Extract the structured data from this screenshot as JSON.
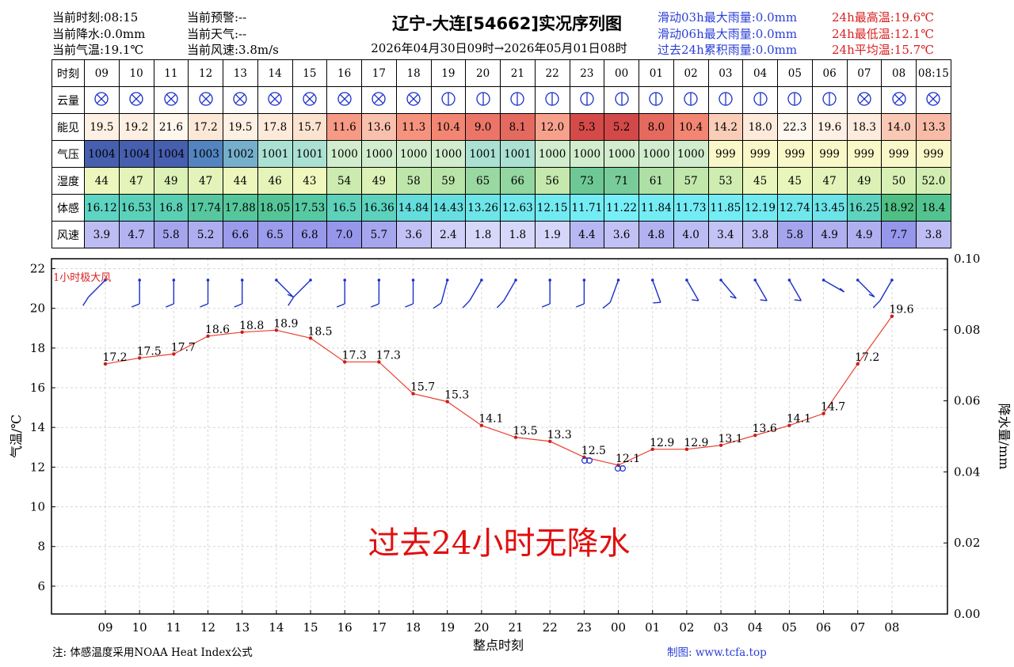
{
  "header": {
    "left": [
      "当前时刻:08:15",
      "当前降水:0.0mm",
      "当前气温:19.1℃"
    ],
    "mid": [
      "当前预警:--",
      "当前天气:--",
      "当前风速:3.8m/s"
    ],
    "title": "辽宁-大连[54662]实况序列图",
    "subtitle": "2026年04月30日09时→2026年05月01日08时",
    "rain": [
      "滑动03h最大雨量:0.0mm",
      "滑动06h最大雨量:0.0mm",
      "过去24h累积雨量:0.0mm"
    ],
    "temp": [
      "24h最高温:19.6℃",
      "24h最低温:12.1℃",
      "24h平均温:15.7℃"
    ]
  },
  "table": {
    "rows": [
      {
        "label": "时刻",
        "key": "time",
        "values": [
          "09",
          "10",
          "11",
          "12",
          "13",
          "14",
          "15",
          "16",
          "17",
          "18",
          "19",
          "20",
          "21",
          "22",
          "23",
          "00",
          "01",
          "02",
          "03",
          "04",
          "05",
          "06",
          "07",
          "08",
          "08:15"
        ]
      },
      {
        "label": "云量",
        "key": "cloud",
        "values": [
          "8",
          "8",
          "8",
          "8",
          "8",
          "8",
          "8",
          "8",
          "8",
          "8",
          "5",
          "5",
          "5",
          "5",
          "5",
          "5",
          "5",
          "4",
          "4",
          "3",
          "2",
          "2",
          "8",
          "8",
          "8"
        ]
      },
      {
        "label": "能见",
        "key": "vis",
        "values": [
          "19.5",
          "19.2",
          "21.6",
          "17.2",
          "19.5",
          "17.8",
          "15.7",
          "11.6",
          "13.6",
          "11.3",
          "10.4",
          "9.0",
          "8.1",
          "12.0",
          "5.3",
          "5.2",
          "8.0",
          "10.4",
          "14.2",
          "18.0",
          "22.3",
          "19.6",
          "18.3",
          "14.0",
          "13.3"
        ]
      },
      {
        "label": "气压",
        "key": "pres",
        "values": [
          "1004",
          "1004",
          "1004",
          "1003",
          "1002",
          "1001",
          "1001",
          "1000",
          "1000",
          "1000",
          "1000",
          "1001",
          "1001",
          "1000",
          "1000",
          "1000",
          "1000",
          "1000",
          "999",
          "999",
          "999",
          "999",
          "999",
          "999",
          "999"
        ]
      },
      {
        "label": "湿度",
        "key": "hum",
        "values": [
          "44",
          "47",
          "49",
          "47",
          "44",
          "46",
          "43",
          "54",
          "49",
          "58",
          "59",
          "65",
          "66",
          "56",
          "73",
          "71",
          "61",
          "57",
          "53",
          "45",
          "45",
          "47",
          "49",
          "50",
          "52.0"
        ]
      },
      {
        "label": "体感",
        "key": "feel",
        "values": [
          "16.12",
          "16.53",
          "16.8",
          "17.74",
          "17.88",
          "18.05",
          "17.53",
          "16.5",
          "16.36",
          "14.84",
          "14.43",
          "13.26",
          "12.63",
          "12.15",
          "11.71",
          "11.22",
          "11.84",
          "11.73",
          "11.85",
          "12.19",
          "12.74",
          "13.45",
          "16.25",
          "18.92",
          "18.4"
        ]
      },
      {
        "label": "风速",
        "key": "wind",
        "values": [
          "3.9",
          "4.7",
          "5.8",
          "5.2",
          "6.6",
          "6.5",
          "6.8",
          "7.0",
          "5.7",
          "3.6",
          "2.4",
          "1.8",
          "1.8",
          "1.9",
          "4.4",
          "3.6",
          "4.8",
          "4.0",
          "3.4",
          "3.8",
          "5.8",
          "4.9",
          "4.9",
          "7.7",
          "3.8"
        ]
      }
    ]
  },
  "chart_data": {
    "type": "line",
    "x": [
      "09",
      "10",
      "11",
      "12",
      "13",
      "14",
      "15",
      "16",
      "17",
      "18",
      "19",
      "20",
      "21",
      "22",
      "23",
      "00",
      "01",
      "02",
      "03",
      "04",
      "05",
      "06",
      "07",
      "08"
    ],
    "series": [
      {
        "name": "",
        "values": [
          17.2,
          17.5,
          17.7,
          18.6,
          18.8,
          18.9,
          18.5,
          17.3,
          17.3,
          15.7,
          15.3,
          14.1,
          13.5,
          13.3,
          12.5,
          12.1,
          12.9,
          12.9,
          13.1,
          13.6,
          14.1,
          14.7,
          17.2,
          19.6
        ]
      }
    ],
    "xlabel": "整点时刻",
    "ylabel": "气温/℃",
    "y2label": "降水量/mm",
    "ylim": [
      4.6,
      22.5
    ],
    "yticks": [
      6,
      8,
      10,
      12,
      14,
      16,
      18,
      20,
      22
    ],
    "y2lim": [
      0,
      0.1
    ],
    "y2ticks": [
      "0.00",
      "0.02",
      "0.04",
      "0.06",
      "0.08",
      "0.10"
    ],
    "grid": true,
    "annotation": "过去24小时无降水",
    "gust_label": "1小时极大风",
    "wind_dir_deg": [
      315,
      0,
      0,
      0,
      0,
      45,
      315,
      0,
      0,
      0,
      345,
      330,
      330,
      0,
      0,
      340,
      20,
      30,
      40,
      30,
      30,
      60,
      45,
      330
    ]
  },
  "footer": {
    "note": "注:  体感温度采用NOAA Heat Index公式",
    "credit": "制图: www.tcfa.top"
  },
  "colors": {
    "temp_line": "#e8412f",
    "temp_point": "#c81e1e",
    "wind_barb": "#1a2fc8",
    "annotation": "#e01010"
  }
}
